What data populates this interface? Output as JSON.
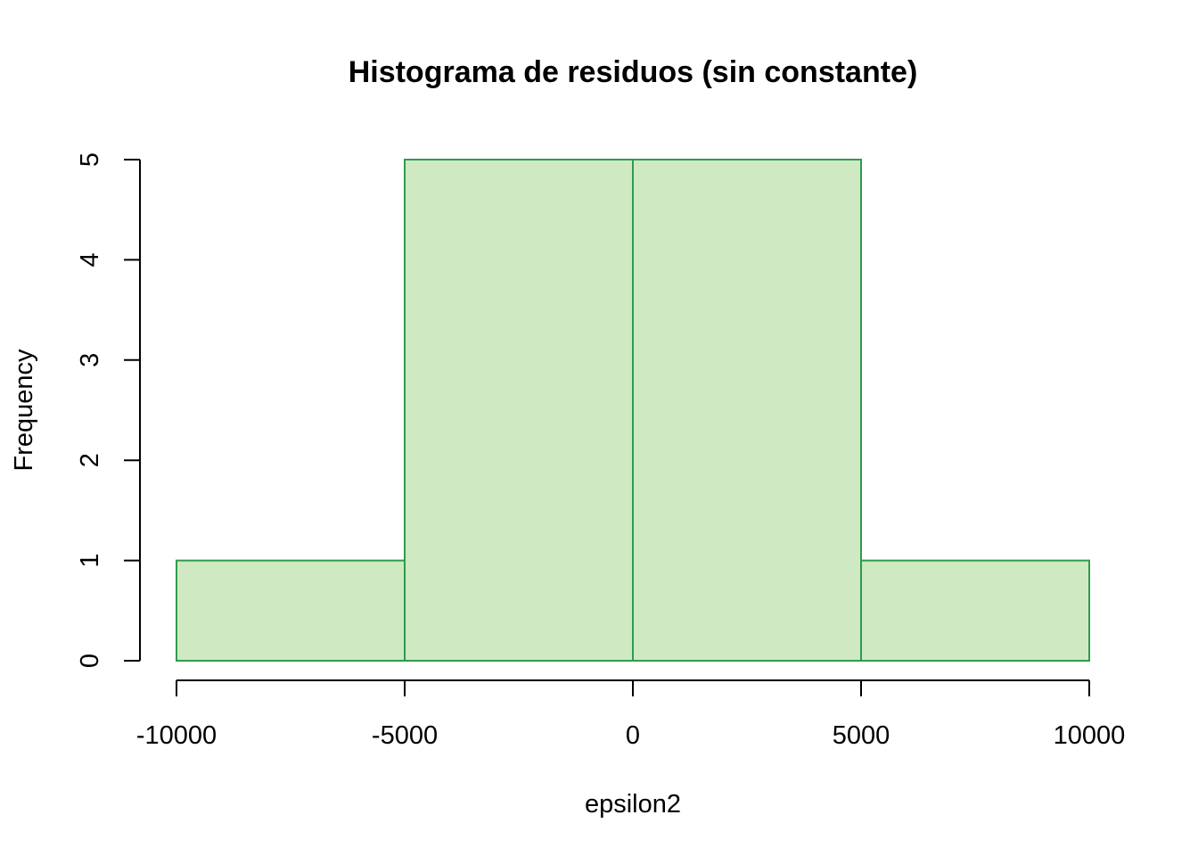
{
  "chart_data": {
    "type": "bar",
    "subtype": "histogram",
    "title": "Histograma de residuos (sin constante)",
    "xlabel": "epsilon2",
    "ylabel": "Frequency",
    "bins": [
      {
        "start": -10000,
        "end": -5000,
        "count": 1
      },
      {
        "start": -5000,
        "end": 0,
        "count": 5
      },
      {
        "start": 0,
        "end": 5000,
        "count": 5
      },
      {
        "start": 5000,
        "end": 10000,
        "count": 1
      }
    ],
    "xlim": [
      -10000,
      10000
    ],
    "ylim": [
      0,
      5
    ],
    "x_ticks": [
      -10000,
      -5000,
      0,
      5000,
      10000
    ],
    "x_tick_labels": [
      "-10000",
      "-5000",
      "0",
      "5000",
      "10000"
    ],
    "y_ticks": [
      0,
      1,
      2,
      3,
      4,
      5
    ],
    "y_tick_labels": [
      "0",
      "1",
      "2",
      "3",
      "4",
      "5"
    ],
    "grid": false,
    "legend": "none",
    "colors": {
      "fill": "#cfeac3",
      "stroke": "#2e9b4e",
      "axis": "#000000"
    }
  }
}
